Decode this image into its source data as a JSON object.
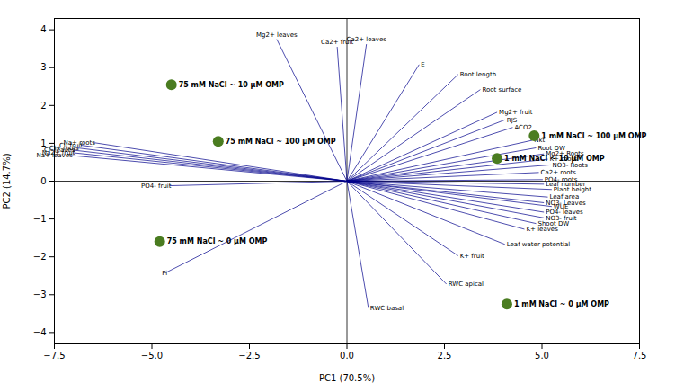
{
  "chart_data": {
    "type": "biplot",
    "xlabel": "PC1 (70.5%)",
    "ylabel": "PC2 (14.7%)",
    "xlim": [
      -7.5,
      7.5
    ],
    "ylim": [
      -4.3,
      4.3
    ],
    "xticks": [
      -7.5,
      {
        "value": -5.0,
        "label": "−5.0"
      },
      -2.5,
      {
        "value": 0.0,
        "label": "0.0"
      },
      2.5,
      {
        "value": 5.0,
        "label": "5.0"
      },
      7.5
    ],
    "yticks": [
      -4,
      -3,
      -2,
      -1,
      0,
      1,
      2,
      3,
      4
    ],
    "scores": {
      "color": "#4a7c20",
      "x": [
        -4.5,
        -3.3,
        -4.8,
        4.8,
        3.85,
        4.1
      ],
      "y": [
        2.55,
        1.05,
        -1.6,
        1.2,
        0.6,
        -3.25
      ],
      "labels": [
        "75 mM NaCl ~ 10 μM OMP",
        "75 mM NaCl ~ 100 μM OMP",
        "75 mM NaCl ~ 0 μM OMP",
        "1 mM NaCl ~ 100 μM OMP",
        "1 mM NaCl ~ 10 μM OMP",
        "1 mM NaCl ~ 0 μM OMP"
      ]
    },
    "loadings": {
      "color": "#00008b",
      "x": [
        -1.8,
        -0.25,
        0.5,
        1.85,
        2.85,
        3.42,
        3.85,
        4.05,
        4.25,
        4.75,
        4.85,
        5.05,
        5.15,
        5.22,
        4.92,
        5.02,
        5.05,
        5.25,
        5.15,
        5.05,
        5.25,
        5.05,
        5.05,
        4.85,
        4.55,
        4.05,
        2.55,
        0.55,
        -6.5,
        -6.82,
        -6.92,
        -7.02,
        -7.02,
        -7.08,
        -4.55,
        -4.65,
        2.85
      ],
      "y": [
        3.75,
        3.55,
        3.62,
        3.08,
        2.82,
        2.42,
        1.82,
        1.62,
        1.42,
        1.08,
        0.88,
        0.72,
        0.58,
        0.43,
        0.23,
        0.04,
        -0.08,
        -0.22,
        -0.42,
        -0.57,
        -0.67,
        -0.82,
        -0.97,
        -1.12,
        -1.27,
        -1.67,
        -2.72,
        -3.35,
        1.02,
        0.95,
        0.88,
        0.82,
        0.75,
        0.68,
        -0.12,
        -2.42,
        -1.97
      ],
      "labels": [
        "Mg2+ leaves",
        "Ca2+ fruit",
        "Ca2+ leaves",
        "E",
        "Root length",
        "Root surface",
        "Mg2+ fruit",
        "RJS",
        "ACO2",
        "Nkt",
        "Root DW",
        "Mg2+ Roots",
        "K+ roots",
        "NO3- Roots",
        "Ca2+ roots",
        "PO4- roots",
        "Leaf number",
        "Plant height",
        "Leaf area",
        "NO3- Leaves",
        "WUE",
        "PO4- leaves",
        "NO3- fruit",
        "Shoot DW",
        "K+ leaves",
        "Leaf water potential",
        "RWC apical",
        "RWC basal",
        "Na+ roots",
        "Cl- fruit",
        "Cl+ roots",
        "Cl- leaves",
        "Na2+ fruit",
        "Na+ leaves",
        "PO4- fruit",
        "Pi",
        "K+ fruit"
      ]
    }
  }
}
